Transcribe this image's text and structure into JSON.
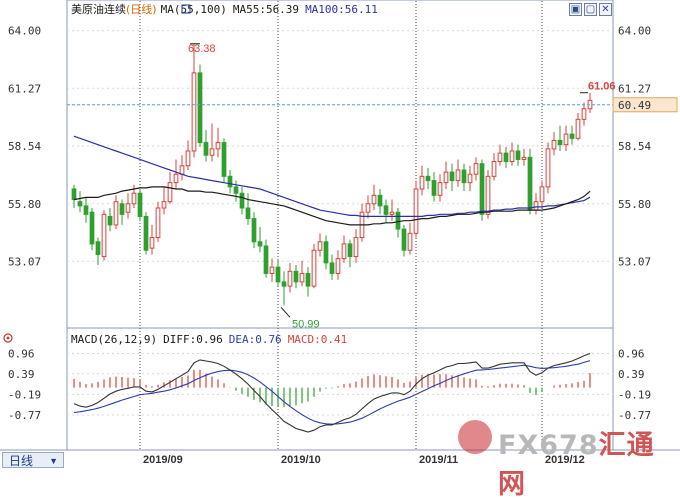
{
  "header": {
    "instrument": "美原油连续",
    "period_bracket": "(日线)",
    "ma_label": "MA(55,100)",
    "ma55_label": "MA55:56.39",
    "ma100_label": "MA100:56.11"
  },
  "macd_header": {
    "label": "MACD(26,12,9)",
    "diff": "DIFF:0.96",
    "dea": "DEA:0.76",
    "macd": "MACD:0.41"
  },
  "period_tab": "日线",
  "watermark": {
    "brand": "FX678",
    "cn": "汇通网"
  },
  "colors": {
    "up": "#d9433b",
    "down": "#2ea02e",
    "ma55": "#1c1c1c",
    "ma100": "#2b2fa8",
    "diff": "#333333",
    "dea": "#2b3fb0",
    "current_price": "#4aa3df",
    "price_tag_bg": "#fbe7cf",
    "price_tag_fg": "#d46a00"
  },
  "chart_data": [
    {
      "type": "candlestick",
      "title": "美原油连续(日线)",
      "ylim": [
        50.2,
        64.6
      ],
      "y_ticks": [
        "64.00",
        "61.27",
        "58.54",
        "55.80",
        "53.07"
      ],
      "y_tick_values": [
        64.0,
        61.27,
        58.54,
        55.8,
        53.07
      ],
      "x_date_labels": [
        {
          "label": "2019/09",
          "index": 11
        },
        {
          "label": "2019/10",
          "index": 34
        },
        {
          "label": "2019/11",
          "index": 57
        },
        {
          "label": "2019/12",
          "index": 78
        }
      ],
      "annotations": {
        "high": {
          "label": "63.38",
          "value": 63.38,
          "index": 20
        },
        "low": {
          "label": "50.99",
          "value": 50.99,
          "index": 35
        },
        "last_high": {
          "label": "61.06",
          "value": 61.06,
          "index": 85
        },
        "current_price": {
          "label": "60.49",
          "value": 60.49
        }
      },
      "candles": [
        [
          56.5,
          56.0,
          56.7,
          55.6
        ],
        [
          55.9,
          55.7,
          56.4,
          55.4
        ],
        [
          55.7,
          55.3,
          56.1,
          54.9
        ],
        [
          55.4,
          53.9,
          55.6,
          53.6
        ],
        [
          54.0,
          53.4,
          54.2,
          52.9
        ],
        [
          53.3,
          55.3,
          55.5,
          53.1
        ],
        [
          55.2,
          54.8,
          55.6,
          54.5
        ],
        [
          54.8,
          55.9,
          56.2,
          54.6
        ],
        [
          55.8,
          55.3,
          56.0,
          54.8
        ],
        [
          55.4,
          55.8,
          56.3,
          55.1
        ],
        [
          55.8,
          56.3,
          56.7,
          55.6
        ],
        [
          56.3,
          55.2,
          56.5,
          55.0
        ],
        [
          55.2,
          53.6,
          55.4,
          53.4
        ],
        [
          53.7,
          54.2,
          54.8,
          53.4
        ],
        [
          54.2,
          55.6,
          55.9,
          54.0
        ],
        [
          55.6,
          55.9,
          56.6,
          55.3
        ],
        [
          55.9,
          56.8,
          57.3,
          55.8
        ],
        [
          56.8,
          57.2,
          57.9,
          56.5
        ],
        [
          57.2,
          57.6,
          58.1,
          56.9
        ],
        [
          57.6,
          58.3,
          58.8,
          57.4
        ],
        [
          58.3,
          62.0,
          63.38,
          58.0
        ],
        [
          62.0,
          58.7,
          62.4,
          58.5
        ],
        [
          58.7,
          58.1,
          59.3,
          57.8
        ],
        [
          58.1,
          58.4,
          59.6,
          57.8
        ],
        [
          58.4,
          58.7,
          59.4,
          58.0
        ],
        [
          58.7,
          57.1,
          58.9,
          56.8
        ],
        [
          57.1,
          56.6,
          57.4,
          56.3
        ],
        [
          56.6,
          56.3,
          56.9,
          55.9
        ],
        [
          56.3,
          55.6,
          56.6,
          55.3
        ],
        [
          55.6,
          55.1,
          56.3,
          54.8
        ],
        [
          55.1,
          54.0,
          55.4,
          53.7
        ],
        [
          54.0,
          53.8,
          54.7,
          53.5
        ],
        [
          53.8,
          52.5,
          54.1,
          52.3
        ],
        [
          52.5,
          52.8,
          53.2,
          52.1
        ],
        [
          52.8,
          52.1,
          53.2,
          51.9
        ],
        [
          52.1,
          51.9,
          52.6,
          50.99
        ],
        [
          51.9,
          52.6,
          53.0,
          51.6
        ],
        [
          52.6,
          52.1,
          52.9,
          51.8
        ],
        [
          52.1,
          52.5,
          53.1,
          51.9
        ],
        [
          52.5,
          51.9,
          52.8,
          51.4
        ],
        [
          51.9,
          53.6,
          53.9,
          51.8
        ],
        [
          53.6,
          54.0,
          54.4,
          53.3
        ],
        [
          54.0,
          53.0,
          54.3,
          52.7
        ],
        [
          53.0,
          52.5,
          53.4,
          52.2
        ],
        [
          52.5,
          53.2,
          53.6,
          52.2
        ],
        [
          53.2,
          53.9,
          54.3,
          53.0
        ],
        [
          53.9,
          53.3,
          54.1,
          52.8
        ],
        [
          53.3,
          54.2,
          54.6,
          53.0
        ],
        [
          54.2,
          55.4,
          55.8,
          54.0
        ],
        [
          55.4,
          55.8,
          56.2,
          55.1
        ],
        [
          55.8,
          56.2,
          56.7,
          55.5
        ],
        [
          56.2,
          55.7,
          56.5,
          55.3
        ],
        [
          55.7,
          55.3,
          56.0,
          54.9
        ],
        [
          55.3,
          55.4,
          56.0,
          55.0
        ],
        [
          55.4,
          54.6,
          55.6,
          54.2
        ],
        [
          54.6,
          53.6,
          54.8,
          53.3
        ],
        [
          53.6,
          54.4,
          54.9,
          53.4
        ],
        [
          54.4,
          56.5,
          56.9,
          54.2
        ],
        [
          56.5,
          57.1,
          57.6,
          56.2
        ],
        [
          57.1,
          56.9,
          57.5,
          56.5
        ],
        [
          56.9,
          56.2,
          57.3,
          55.9
        ],
        [
          56.2,
          56.8,
          57.2,
          55.9
        ],
        [
          56.8,
          57.3,
          57.8,
          56.5
        ],
        [
          57.3,
          56.9,
          57.7,
          56.4
        ],
        [
          56.9,
          57.4,
          57.9,
          56.6
        ],
        [
          57.4,
          56.8,
          57.7,
          56.4
        ],
        [
          56.8,
          57.2,
          57.6,
          56.4
        ],
        [
          57.2,
          57.7,
          58.0,
          56.9
        ],
        [
          57.7,
          55.3,
          57.9,
          55.0
        ],
        [
          55.3,
          57.1,
          57.4,
          55.1
        ],
        [
          57.1,
          57.8,
          58.2,
          56.9
        ],
        [
          57.8,
          58.2,
          58.6,
          57.6
        ],
        [
          58.2,
          57.8,
          58.5,
          57.5
        ],
        [
          57.8,
          58.3,
          58.7,
          57.6
        ],
        [
          58.3,
          57.9,
          58.6,
          57.6
        ],
        [
          57.9,
          58.0,
          58.4,
          57.6
        ],
        [
          58.0,
          55.5,
          58.4,
          55.3
        ],
        [
          55.5,
          55.9,
          56.3,
          55.3
        ],
        [
          55.9,
          56.6,
          56.9,
          55.6
        ],
        [
          56.6,
          58.4,
          58.7,
          56.3
        ],
        [
          58.4,
          58.8,
          59.2,
          58.1
        ],
        [
          58.8,
          58.6,
          59.5,
          58.3
        ],
        [
          58.6,
          59.1,
          59.5,
          58.3
        ],
        [
          59.1,
          58.9,
          59.5,
          58.6
        ],
        [
          58.9,
          59.8,
          60.1,
          58.8
        ],
        [
          59.8,
          60.3,
          60.6,
          59.5
        ],
        [
          60.3,
          60.7,
          61.06,
          60.1
        ]
      ],
      "ma55": [
        56.0,
        56.05,
        56.1,
        56.1,
        56.1,
        56.2,
        56.25,
        56.3,
        56.4,
        56.45,
        56.5,
        56.55,
        56.55,
        56.6,
        56.6,
        56.6,
        56.55,
        56.5,
        56.5,
        56.4,
        56.4,
        56.4,
        56.35,
        56.35,
        56.3,
        56.25,
        56.2,
        56.15,
        56.1,
        56.0,
        55.95,
        55.9,
        55.85,
        55.8,
        55.75,
        55.7,
        55.6,
        55.5,
        55.4,
        55.3,
        55.2,
        55.1,
        55.0,
        54.95,
        54.9,
        54.85,
        54.8,
        54.8,
        54.8,
        54.8,
        54.85,
        54.85,
        54.9,
        54.9,
        54.95,
        55.0,
        55.0,
        55.05,
        55.1,
        55.1,
        55.15,
        55.2,
        55.2,
        55.25,
        55.3,
        55.3,
        55.3,
        55.35,
        55.4,
        55.4,
        55.45,
        55.45,
        55.45,
        55.45,
        55.5,
        55.5,
        55.5,
        55.5,
        55.5,
        55.55,
        55.6,
        55.7,
        55.8,
        55.9,
        56.0,
        56.15,
        56.39
      ],
      "ma100": [
        59.0,
        58.9,
        58.8,
        58.7,
        58.6,
        58.5,
        58.4,
        58.3,
        58.2,
        58.1,
        58.0,
        57.9,
        57.8,
        57.7,
        57.6,
        57.5,
        57.4,
        57.3,
        57.2,
        57.1,
        57.05,
        57.0,
        56.95,
        56.9,
        56.85,
        56.8,
        56.75,
        56.7,
        56.65,
        56.6,
        56.55,
        56.5,
        56.4,
        56.3,
        56.2,
        56.1,
        56.0,
        55.9,
        55.8,
        55.7,
        55.6,
        55.5,
        55.45,
        55.4,
        55.35,
        55.3,
        55.25,
        55.25,
        55.2,
        55.2,
        55.2,
        55.2,
        55.2,
        55.2,
        55.2,
        55.2,
        55.2,
        55.2,
        55.2,
        55.25,
        55.25,
        55.3,
        55.3,
        55.3,
        55.35,
        55.35,
        55.4,
        55.4,
        55.45,
        55.45,
        55.5,
        55.5,
        55.55,
        55.55,
        55.6,
        55.6,
        55.6,
        55.65,
        55.65,
        55.7,
        55.7,
        55.75,
        55.8,
        55.85,
        55.9,
        55.95,
        56.11
      ]
    },
    {
      "type": "macd",
      "title": "MACD(26,12,9)",
      "ylim": [
        -1.7,
        1.2
      ],
      "y_ticks": [
        "0.96",
        "0.39",
        "-0.19",
        "-0.77"
      ],
      "y_tick_values": [
        0.96,
        0.39,
        -0.19,
        -0.77
      ],
      "series": [
        {
          "name": "DIFF",
          "values": [
            -0.45,
            -0.52,
            -0.55,
            -0.5,
            -0.42,
            -0.3,
            -0.18,
            -0.1,
            -0.05,
            -0.02,
            0.02,
            0.02,
            -0.1,
            -0.12,
            -0.05,
            0.05,
            0.15,
            0.25,
            0.35,
            0.45,
            0.7,
            0.78,
            0.75,
            0.72,
            0.68,
            0.6,
            0.5,
            0.38,
            0.25,
            0.1,
            -0.08,
            -0.25,
            -0.45,
            -0.62,
            -0.78,
            -0.95,
            -1.05,
            -1.15,
            -1.2,
            -1.25,
            -1.2,
            -1.1,
            -1.05,
            -1.05,
            -0.98,
            -0.9,
            -0.85,
            -0.75,
            -0.6,
            -0.45,
            -0.32,
            -0.25,
            -0.2,
            -0.15,
            -0.15,
            -0.2,
            -0.1,
            0.1,
            0.25,
            0.35,
            0.42,
            0.5,
            0.58,
            0.62,
            0.68,
            0.68,
            0.7,
            0.72,
            0.55,
            0.55,
            0.6,
            0.66,
            0.68,
            0.7,
            0.7,
            0.7,
            0.45,
            0.35,
            0.42,
            0.55,
            0.62,
            0.66,
            0.7,
            0.75,
            0.82,
            0.9,
            0.96
          ]
        },
        {
          "name": "DEA",
          "values": [
            -0.7,
            -0.68,
            -0.65,
            -0.62,
            -0.58,
            -0.53,
            -0.47,
            -0.41,
            -0.35,
            -0.3,
            -0.25,
            -0.2,
            -0.18,
            -0.16,
            -0.13,
            -0.1,
            -0.06,
            -0.01,
            0.05,
            0.11,
            0.2,
            0.28,
            0.35,
            0.41,
            0.45,
            0.48,
            0.49,
            0.47,
            0.43,
            0.36,
            0.27,
            0.16,
            0.03,
            -0.1,
            -0.25,
            -0.4,
            -0.53,
            -0.65,
            -0.76,
            -0.86,
            -0.94,
            -0.99,
            -1.02,
            -1.03,
            -1.02,
            -1.0,
            -0.97,
            -0.92,
            -0.86,
            -0.78,
            -0.69,
            -0.6,
            -0.52,
            -0.45,
            -0.38,
            -0.33,
            -0.27,
            -0.19,
            -0.11,
            -0.03,
            0.05,
            0.12,
            0.2,
            0.27,
            0.33,
            0.39,
            0.44,
            0.49,
            0.5,
            0.51,
            0.53,
            0.55,
            0.57,
            0.59,
            0.61,
            0.63,
            0.6,
            0.56,
            0.54,
            0.55,
            0.56,
            0.58,
            0.6,
            0.63,
            0.66,
            0.71,
            0.76
          ]
        }
      ],
      "histogram": [
        0.25,
        0.16,
        0.1,
        0.12,
        0.16,
        0.23,
        0.29,
        0.31,
        0.3,
        0.28,
        0.27,
        0.22,
        0.08,
        0.04,
        0.08,
        0.15,
        0.21,
        0.26,
        0.3,
        0.34,
        0.5,
        0.5,
        0.4,
        0.31,
        0.23,
        0.12,
        0.01,
        -0.09,
        -0.18,
        -0.26,
        -0.35,
        -0.41,
        -0.48,
        -0.52,
        -0.53,
        -0.55,
        -0.52,
        -0.5,
        -0.44,
        -0.39,
        -0.26,
        -0.11,
        -0.03,
        -0.02,
        0.04,
        0.1,
        0.12,
        0.17,
        0.26,
        0.33,
        0.37,
        0.35,
        0.32,
        0.3,
        0.23,
        0.13,
        0.17,
        0.29,
        0.36,
        0.38,
        0.37,
        0.38,
        0.38,
        0.35,
        0.35,
        0.29,
        0.26,
        0.23,
        0.05,
        0.04,
        0.07,
        0.11,
        0.11,
        0.11,
        0.09,
        0.07,
        -0.15,
        -0.21,
        -0.12,
        0.0,
        0.06,
        0.08,
        0.1,
        0.12,
        0.16,
        0.19,
        0.41
      ]
    }
  ]
}
